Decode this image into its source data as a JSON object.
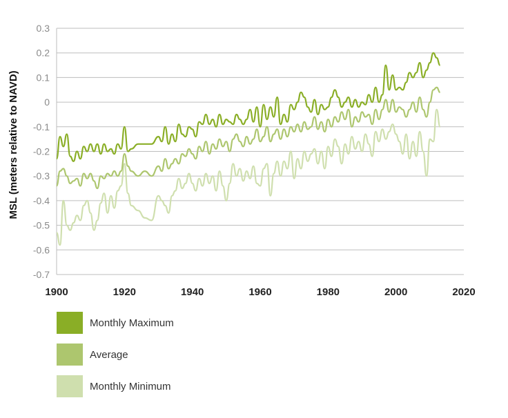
{
  "chart_data": {
    "type": "line",
    "ylabel": "MSL (meters relative to NAVD)",
    "xlabel": "",
    "xlim": [
      1900,
      2020
    ],
    "ylim": [
      -0.7,
      0.3
    ],
    "x_ticks": [
      1900,
      1920,
      1940,
      1960,
      1980,
      2000,
      2020
    ],
    "y_ticks": [
      0.3,
      0.2,
      0.1,
      0,
      -0.1,
      -0.2,
      -0.3,
      -0.4,
      -0.5,
      -0.6,
      -0.7
    ],
    "y_tick_labels": [
      "0.3",
      "0.2",
      "0.1",
      "0",
      "-0.1",
      "-0.2",
      "-0.3",
      "-0.4",
      "-0.5",
      "-0.6",
      "-0.7"
    ],
    "grid": "horizontal",
    "legend_position": "bottom-left",
    "series": [
      {
        "name": "Monthly Maximum",
        "color": "#8aae26",
        "x": [
          1900,
          1901,
          1902,
          1903,
          1904,
          1905,
          1906,
          1907,
          1908,
          1909,
          1910,
          1911,
          1912,
          1913,
          1914,
          1915,
          1916,
          1917,
          1918,
          1919,
          1920,
          1921,
          1922,
          1924,
          1926,
          1928,
          1930,
          1931,
          1932,
          1933,
          1934,
          1935,
          1936,
          1937,
          1938,
          1939,
          1940,
          1941,
          1942,
          1943,
          1944,
          1945,
          1946,
          1947,
          1948,
          1949,
          1950,
          1951,
          1952,
          1953,
          1954,
          1955,
          1956,
          1957,
          1958,
          1959,
          1960,
          1961,
          1962,
          1963,
          1964,
          1965,
          1966,
          1967,
          1968,
          1969,
          1970,
          1971,
          1972,
          1973,
          1974,
          1975,
          1976,
          1977,
          1978,
          1979,
          1980,
          1981,
          1982,
          1983,
          1984,
          1985,
          1986,
          1987,
          1988,
          1989,
          1990,
          1991,
          1992,
          1993,
          1994,
          1995,
          1996,
          1997,
          1998,
          1999,
          2000,
          2001,
          2002,
          2003,
          2004,
          2005,
          2006,
          2007,
          2008,
          2009,
          2010,
          2011,
          2012,
          2013
        ],
        "y": [
          -0.23,
          -0.14,
          -0.18,
          -0.13,
          -0.22,
          -0.24,
          -0.2,
          -0.23,
          -0.18,
          -0.2,
          -0.17,
          -0.2,
          -0.17,
          -0.21,
          -0.17,
          -0.2,
          -0.19,
          -0.21,
          -0.17,
          -0.19,
          -0.1,
          -0.2,
          -0.19,
          -0.17,
          -0.17,
          -0.17,
          -0.14,
          -0.16,
          -0.1,
          -0.17,
          -0.13,
          -0.16,
          -0.09,
          -0.13,
          -0.14,
          -0.1,
          -0.11,
          -0.14,
          -0.08,
          -0.09,
          -0.05,
          -0.09,
          -0.07,
          -0.1,
          -0.05,
          -0.09,
          -0.07,
          -0.08,
          -0.09,
          -0.05,
          -0.07,
          -0.09,
          -0.07,
          -0.03,
          -0.08,
          -0.02,
          -0.1,
          -0.01,
          -0.07,
          -0.02,
          -0.06,
          0.02,
          -0.09,
          -0.05,
          -0.08,
          -0.01,
          -0.03,
          0.0,
          0.04,
          0.02,
          -0.02,
          -0.04,
          0.01,
          -0.05,
          -0.01,
          -0.03,
          -0.02,
          0.02,
          0.05,
          0.02,
          -0.02,
          0.0,
          0.02,
          -0.02,
          0.01,
          -0.02,
          0.0,
          -0.01,
          0.03,
          0.0,
          0.06,
          0.0,
          0.03,
          0.15,
          0.05,
          0.11,
          0.05,
          0.06,
          0.05,
          0.08,
          0.12,
          0.1,
          0.12,
          0.16,
          0.1,
          0.13,
          0.16,
          0.2,
          0.18,
          0.15
        ]
      },
      {
        "name": "Average",
        "color": "#adc66e",
        "x": [
          1900,
          1901,
          1902,
          1903,
          1904,
          1905,
          1906,
          1907,
          1908,
          1909,
          1910,
          1911,
          1912,
          1913,
          1914,
          1915,
          1916,
          1917,
          1918,
          1919,
          1920,
          1921,
          1922,
          1924,
          1926,
          1928,
          1930,
          1931,
          1932,
          1933,
          1934,
          1935,
          1936,
          1937,
          1938,
          1939,
          1940,
          1941,
          1942,
          1943,
          1944,
          1945,
          1946,
          1947,
          1948,
          1949,
          1950,
          1951,
          1952,
          1953,
          1954,
          1955,
          1956,
          1957,
          1958,
          1959,
          1960,
          1961,
          1962,
          1963,
          1964,
          1965,
          1966,
          1967,
          1968,
          1969,
          1970,
          1971,
          1972,
          1973,
          1974,
          1975,
          1976,
          1977,
          1978,
          1979,
          1980,
          1981,
          1982,
          1983,
          1984,
          1985,
          1986,
          1987,
          1988,
          1989,
          1990,
          1991,
          1992,
          1993,
          1994,
          1995,
          1996,
          1997,
          1998,
          1999,
          2000,
          2001,
          2002,
          2003,
          2004,
          2005,
          2006,
          2007,
          2008,
          2009,
          2010,
          2011,
          2012,
          2013
        ],
        "y": [
          -0.34,
          -0.28,
          -0.27,
          -0.3,
          -0.33,
          -0.32,
          -0.31,
          -0.34,
          -0.29,
          -0.31,
          -0.29,
          -0.32,
          -0.35,
          -0.3,
          -0.31,
          -0.29,
          -0.3,
          -0.28,
          -0.3,
          -0.28,
          -0.21,
          -0.26,
          -0.28,
          -0.3,
          -0.28,
          -0.3,
          -0.26,
          -0.28,
          -0.23,
          -0.27,
          -0.25,
          -0.23,
          -0.25,
          -0.21,
          -0.22,
          -0.19,
          -0.21,
          -0.23,
          -0.18,
          -0.2,
          -0.16,
          -0.21,
          -0.17,
          -0.19,
          -0.15,
          -0.18,
          -0.16,
          -0.2,
          -0.15,
          -0.13,
          -0.16,
          -0.18,
          -0.14,
          -0.17,
          -0.15,
          -0.11,
          -0.16,
          -0.14,
          -0.1,
          -0.16,
          -0.13,
          -0.11,
          -0.15,
          -0.11,
          -0.14,
          -0.1,
          -0.12,
          -0.09,
          -0.12,
          -0.08,
          -0.11,
          -0.1,
          -0.06,
          -0.11,
          -0.08,
          -0.12,
          -0.07,
          -0.1,
          -0.06,
          -0.08,
          -0.04,
          -0.07,
          -0.03,
          -0.1,
          -0.06,
          -0.08,
          -0.04,
          -0.06,
          -0.05,
          -0.09,
          -0.03,
          -0.07,
          -0.03,
          0.01,
          -0.04,
          0.01,
          -0.04,
          -0.02,
          -0.03,
          -0.06,
          -0.03,
          0.0,
          -0.04,
          0.02,
          -0.03,
          -0.06,
          0.0,
          0.05,
          0.06,
          0.04
        ]
      },
      {
        "name": "Monthly Minimum",
        "color": "#cfdfae",
        "x": [
          1900,
          1901,
          1902,
          1903,
          1904,
          1905,
          1906,
          1907,
          1908,
          1909,
          1910,
          1911,
          1912,
          1913,
          1914,
          1915,
          1916,
          1917,
          1918,
          1919,
          1920,
          1921,
          1922,
          1924,
          1926,
          1928,
          1930,
          1931,
          1932,
          1933,
          1934,
          1935,
          1936,
          1937,
          1938,
          1939,
          1940,
          1941,
          1942,
          1943,
          1944,
          1945,
          1946,
          1947,
          1948,
          1949,
          1950,
          1951,
          1952,
          1953,
          1954,
          1955,
          1956,
          1957,
          1958,
          1959,
          1960,
          1961,
          1962,
          1963,
          1964,
          1965,
          1966,
          1967,
          1968,
          1969,
          1970,
          1971,
          1972,
          1973,
          1974,
          1975,
          1976,
          1977,
          1978,
          1979,
          1980,
          1981,
          1982,
          1983,
          1984,
          1985,
          1986,
          1987,
          1988,
          1989,
          1990,
          1991,
          1992,
          1993,
          1994,
          1995,
          1996,
          1997,
          1998,
          1999,
          2000,
          2001,
          2002,
          2003,
          2004,
          2005,
          2006,
          2007,
          2008,
          2009,
          2010,
          2011,
          2012,
          2013
        ],
        "y": [
          -0.53,
          -0.58,
          -0.4,
          -0.5,
          -0.52,
          -0.49,
          -0.46,
          -0.48,
          -0.42,
          -0.4,
          -0.45,
          -0.52,
          -0.48,
          -0.41,
          -0.37,
          -0.45,
          -0.38,
          -0.43,
          -0.36,
          -0.34,
          -0.25,
          -0.37,
          -0.42,
          -0.44,
          -0.47,
          -0.48,
          -0.38,
          -0.4,
          -0.42,
          -0.45,
          -0.38,
          -0.36,
          -0.31,
          -0.35,
          -0.33,
          -0.29,
          -0.33,
          -0.36,
          -0.31,
          -0.34,
          -0.29,
          -0.33,
          -0.3,
          -0.36,
          -0.28,
          -0.34,
          -0.4,
          -0.33,
          -0.25,
          -0.3,
          -0.27,
          -0.32,
          -0.28,
          -0.31,
          -0.26,
          -0.33,
          -0.34,
          -0.27,
          -0.25,
          -0.38,
          -0.29,
          -0.24,
          -0.3,
          -0.24,
          -0.27,
          -0.2,
          -0.31,
          -0.23,
          -0.27,
          -0.2,
          -0.24,
          -0.21,
          -0.19,
          -0.25,
          -0.2,
          -0.27,
          -0.18,
          -0.22,
          -0.15,
          -0.18,
          -0.25,
          -0.17,
          -0.21,
          -0.14,
          -0.19,
          -0.16,
          -0.2,
          -0.13,
          -0.17,
          -0.22,
          -0.12,
          -0.16,
          -0.11,
          -0.15,
          -0.12,
          -0.09,
          -0.13,
          -0.16,
          -0.21,
          -0.13,
          -0.23,
          -0.16,
          -0.22,
          -0.12,
          -0.2,
          -0.3,
          -0.15,
          -0.16,
          -0.03,
          -0.1
        ]
      }
    ]
  }
}
